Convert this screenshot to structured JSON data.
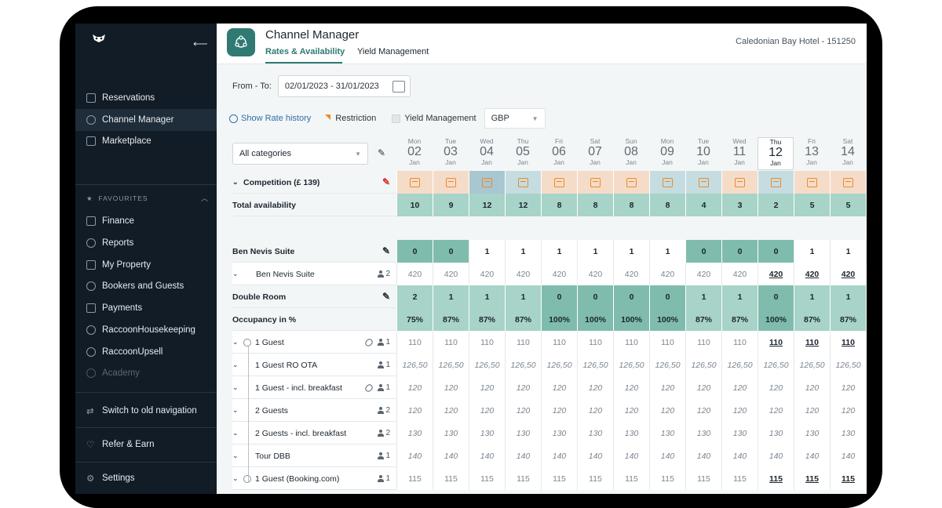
{
  "sidebar": {
    "logo": "raccoon-logo",
    "items": [
      {
        "label": "Reservations",
        "icon": "calendar-icon"
      },
      {
        "label": "Channel Manager",
        "icon": "channel-manager-icon"
      },
      {
        "label": "Marketplace",
        "icon": "marketplace-icon"
      }
    ],
    "favourites_label": "FAVOURITES",
    "favourites": [
      {
        "label": "Finance",
        "icon": "finance-icon"
      },
      {
        "label": "Reports",
        "icon": "reports-icon"
      },
      {
        "label": "My Property",
        "icon": "property-icon"
      },
      {
        "label": "Bookers and Guests",
        "icon": "guests-icon"
      },
      {
        "label": "Payments",
        "icon": "payments-icon"
      },
      {
        "label": "RaccoonHousekeeping",
        "icon": "housekeeping-icon"
      },
      {
        "label": "RaccoonUpsell",
        "icon": "upsell-icon"
      },
      {
        "label": "Academy",
        "icon": "academy-icon"
      }
    ],
    "switch_label": "Switch to old navigation",
    "refer_label": "Refer & Earn",
    "settings_label": "Settings"
  },
  "header": {
    "title": "Channel Manager",
    "tabs": [
      "Rates & Availability",
      "Yield Management"
    ],
    "hotel": "Caledonian Bay Hotel - 151250"
  },
  "filters": {
    "from_to_label": "From - To:",
    "date_range": "02/01/2023 - 31/01/2023",
    "show_rate_history": "Show Rate history",
    "restriction": "Restriction",
    "yield_management": "Yield Management",
    "currency": "GBP",
    "category": "All categories"
  },
  "days": [
    {
      "name": "Mon",
      "date": "02",
      "month": "Jan"
    },
    {
      "name": "Tue",
      "date": "03",
      "month": "Jan"
    },
    {
      "name": "Wed",
      "date": "04",
      "month": "Jan"
    },
    {
      "name": "Thu",
      "date": "05",
      "month": "Jan"
    },
    {
      "name": "Fri",
      "date": "06",
      "month": "Jan"
    },
    {
      "name": "Sat",
      "date": "07",
      "month": "Jan"
    },
    {
      "name": "Sun",
      "date": "08",
      "month": "Jan"
    },
    {
      "name": "Mon",
      "date": "09",
      "month": "Jan"
    },
    {
      "name": "Tue",
      "date": "10",
      "month": "Jan"
    },
    {
      "name": "Wed",
      "date": "11",
      "month": "Jan"
    },
    {
      "name": "Thu",
      "date": "12",
      "month": "Jan"
    },
    {
      "name": "Fri",
      "date": "13",
      "month": "Jan"
    },
    {
      "name": "Sat",
      "date": "14",
      "month": "Jan"
    }
  ],
  "rows": {
    "competition_label": "Competition (£ 139)",
    "total_label": "Total availability",
    "total": [
      "10",
      "9",
      "12",
      "12",
      "8",
      "8",
      "8",
      "8",
      "4",
      "3",
      "2",
      "5",
      "5"
    ],
    "ben_nevis_label": "Ben Nevis Suite",
    "ben_nevis": [
      "0",
      "0",
      "1",
      "1",
      "1",
      "1",
      "1",
      "1",
      "0",
      "0",
      "0",
      "1",
      "1"
    ],
    "ben_nevis_rate_label": "Ben Nevis Suite",
    "ben_nevis_rate_persons": "2",
    "ben_nevis_rate": [
      "420",
      "420",
      "420",
      "420",
      "420",
      "420",
      "420",
      "420",
      "420",
      "420",
      "420",
      "420",
      "420"
    ],
    "double_label": "Double Room",
    "double": [
      "2",
      "1",
      "1",
      "1",
      "0",
      "0",
      "0",
      "0",
      "1",
      "1",
      "0",
      "1",
      "1"
    ],
    "occupancy_label": "Occupancy in %",
    "occupancy": [
      "75%",
      "87%",
      "87%",
      "87%",
      "100%",
      "100%",
      "100%",
      "100%",
      "87%",
      "87%",
      "100%",
      "87%",
      "87%"
    ],
    "rates": [
      {
        "label": "1 Guest",
        "persons": "1",
        "values": [
          "110",
          "110",
          "110",
          "110",
          "110",
          "110",
          "110",
          "110",
          "110",
          "110",
          "110",
          "110",
          "110"
        ]
      },
      {
        "label": "1 Guest RO OTA",
        "persons": "1",
        "values": [
          "126,50",
          "126,50",
          "126,50",
          "126,50",
          "126,50",
          "126,50",
          "126,50",
          "126,50",
          "126,50",
          "126,50",
          "126,50",
          "126,50",
          "126,50"
        ]
      },
      {
        "label": "1 Guest - incl. breakfast",
        "persons": "1",
        "values": [
          "120",
          "120",
          "120",
          "120",
          "120",
          "120",
          "120",
          "120",
          "120",
          "120",
          "120",
          "120",
          "120"
        ]
      },
      {
        "label": "2 Guests",
        "persons": "2",
        "values": [
          "120",
          "120",
          "120",
          "120",
          "120",
          "120",
          "120",
          "120",
          "120",
          "120",
          "120",
          "120",
          "120"
        ]
      },
      {
        "label": "2 Guests - incl. breakfast",
        "persons": "2",
        "values": [
          "130",
          "130",
          "130",
          "130",
          "130",
          "130",
          "130",
          "130",
          "130",
          "130",
          "130",
          "130",
          "130"
        ]
      },
      {
        "label": "Tour DBB",
        "persons": "1",
        "values": [
          "140",
          "140",
          "140",
          "140",
          "140",
          "140",
          "140",
          "140",
          "140",
          "140",
          "140",
          "140",
          "140"
        ]
      },
      {
        "label": "1 Guest (Booking.com)",
        "persons": "1",
        "values": [
          "115",
          "115",
          "115",
          "115",
          "115",
          "115",
          "115",
          "115",
          "115",
          "115",
          "115",
          "115",
          "115"
        ]
      }
    ]
  },
  "colors": {
    "accent": "#2f7a72",
    "sidebar": "#121c27",
    "avail_light": "#a7d3c8",
    "avail_dark": "#7fbcad",
    "restriction": "#e98c2c"
  }
}
